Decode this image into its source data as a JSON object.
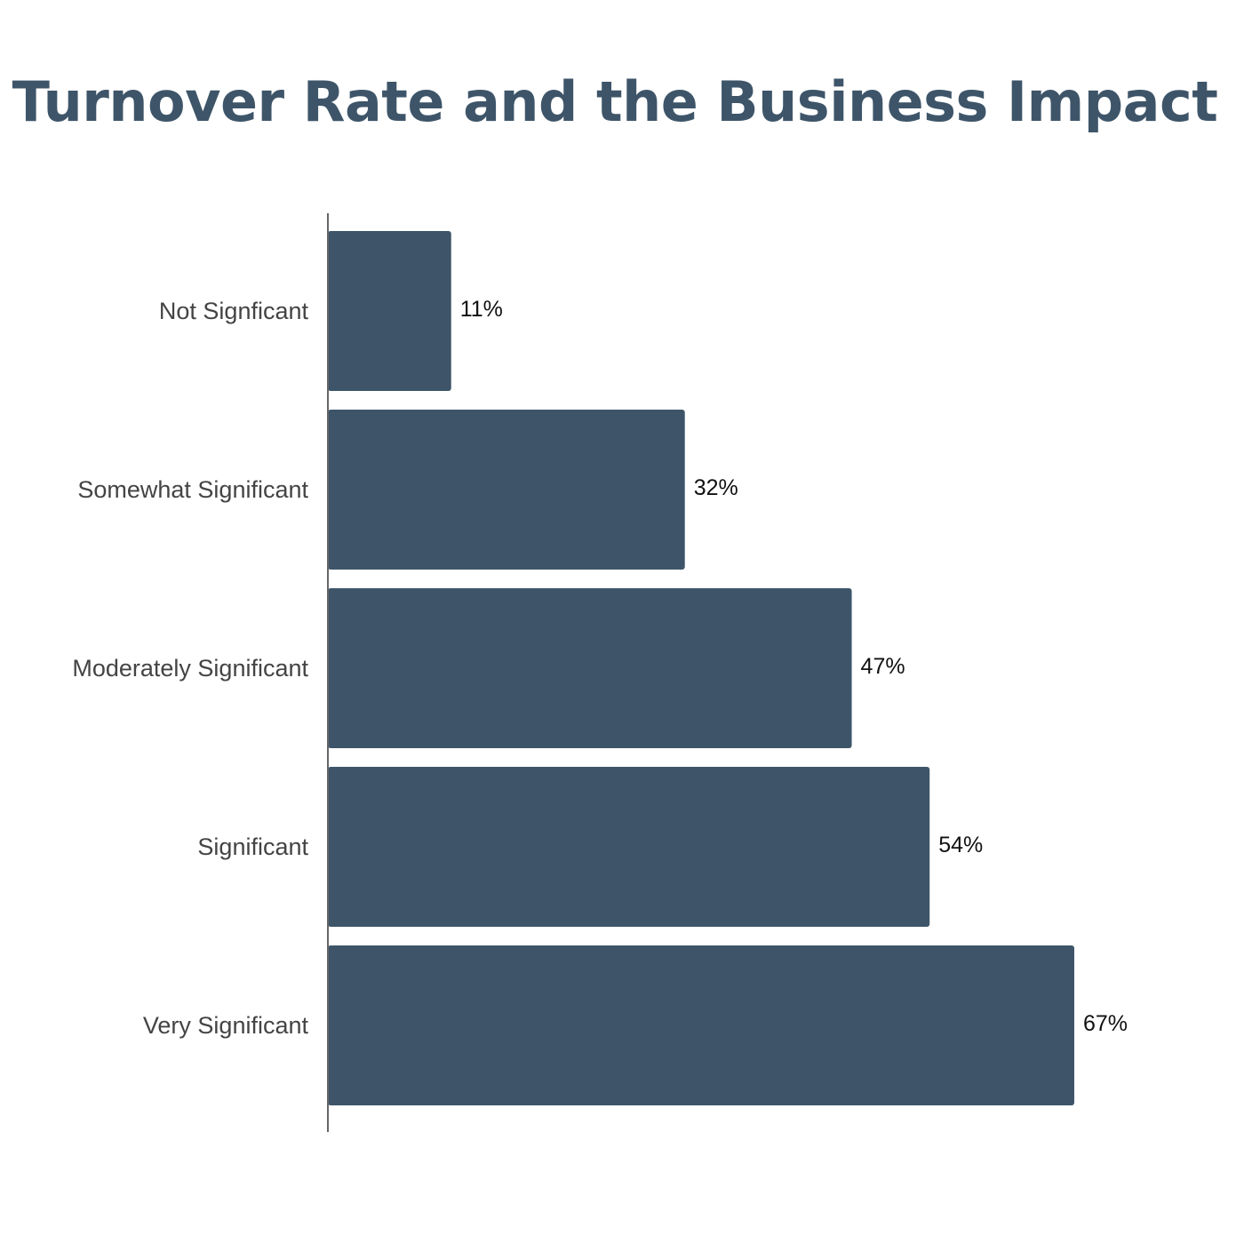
{
  "chart_data": {
    "type": "bar",
    "orientation": "horizontal",
    "title": "Turnover Rate and the Business Impact",
    "categories": [
      "Not Signficant",
      "Somewhat Significant",
      "Moderately Significant",
      "Significant",
      "Very Significant"
    ],
    "values": [
      11,
      32,
      47,
      54,
      67
    ],
    "value_labels": [
      "11%",
      "32%",
      "47%",
      "54%",
      "67%"
    ],
    "unit": "%",
    "xlim": [
      0,
      100
    ],
    "grid": false,
    "legend": "none",
    "bar_color": "#3e5569",
    "title_color": "#3e5569"
  }
}
